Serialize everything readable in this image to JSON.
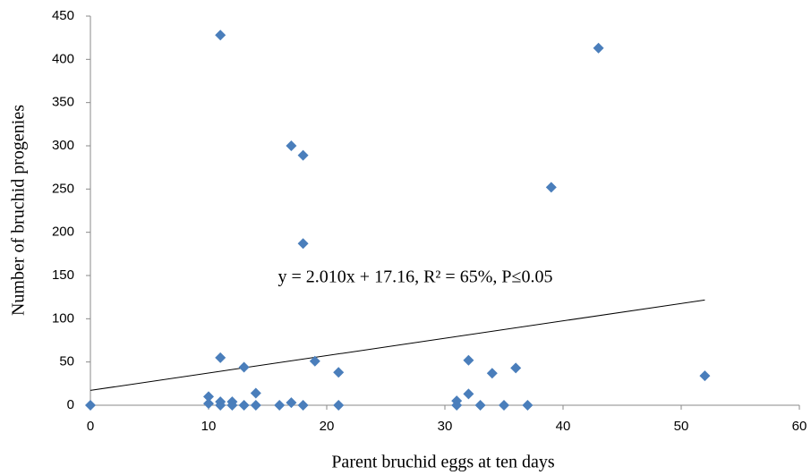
{
  "chart_data": {
    "type": "scatter",
    "x_label": "Parent bruchid eggs at ten days",
    "y_label": "Number of bruchid progenies",
    "annotation": "y = 2.010x + 17.16, R² = 65%, P≤0.05",
    "series": [
      {
        "color": "#4a7ebb",
        "x": [
          0,
          11,
          17,
          18,
          18,
          43,
          39,
          11,
          13,
          19,
          21,
          32,
          34,
          36,
          52,
          10,
          10,
          11,
          11,
          12,
          12,
          13,
          14,
          14,
          16,
          17,
          18,
          21,
          31,
          31,
          32,
          33,
          35,
          37
        ],
        "values": [
          0,
          428,
          300,
          289,
          187,
          413,
          252,
          55,
          44,
          51,
          38,
          52,
          37,
          43,
          34,
          10,
          2,
          4,
          0,
          4,
          0,
          0,
          14,
          0,
          0,
          3,
          0,
          0,
          5,
          0,
          13,
          0,
          0,
          0
        ]
      }
    ],
    "trendline": {
      "slope": 2.01,
      "intercept": 17.16,
      "xrange": [
        0,
        52
      ],
      "color": "#000000"
    },
    "xlim": [
      0,
      60
    ],
    "xticks": [
      0,
      10,
      20,
      30,
      40,
      50,
      60
    ],
    "ylim": [
      0,
      450
    ],
    "yticks": [
      0,
      50,
      100,
      150,
      200,
      250,
      300,
      350,
      400,
      450
    ],
    "grid": false
  }
}
